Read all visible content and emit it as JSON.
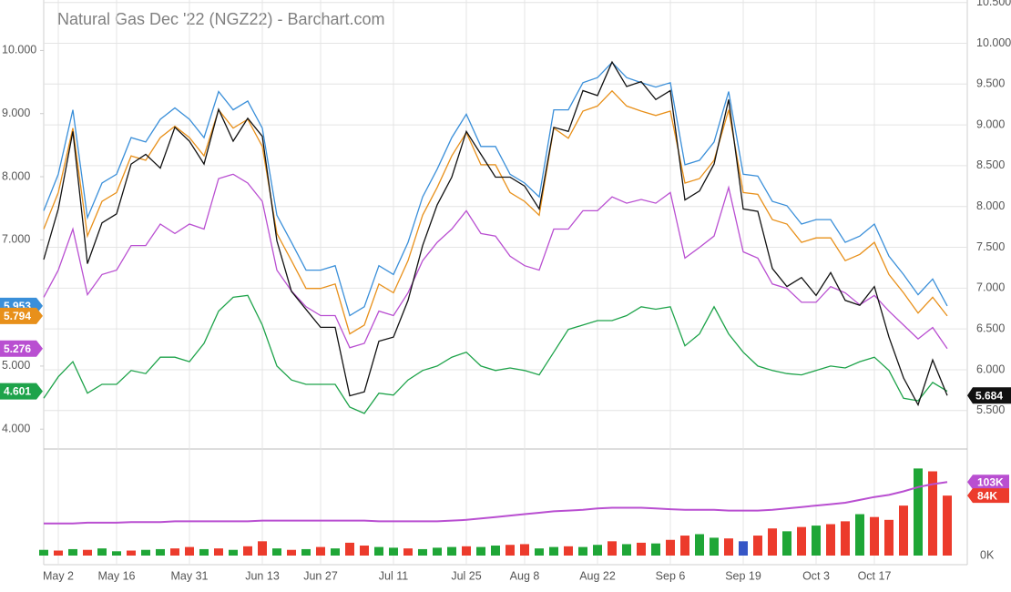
{
  "chart_data": {
    "type": "line",
    "title": "Natural Gas Dec '22 (NGZ22) - Barchart.com",
    "categories": [
      null,
      "May 2",
      null,
      null,
      null,
      "May 16",
      null,
      null,
      null,
      null,
      "May 31",
      null,
      null,
      null,
      null,
      "Jun 13",
      null,
      null,
      null,
      "Jun 27",
      null,
      null,
      null,
      null,
      "Jul 11",
      null,
      null,
      null,
      null,
      "Jul 25",
      null,
      null,
      null,
      "Aug 8",
      null,
      null,
      null,
      null,
      "Aug 22",
      null,
      null,
      null,
      null,
      "Sep 6",
      null,
      null,
      null,
      null,
      "Sep 19",
      null,
      null,
      null,
      null,
      "Oct 3",
      null,
      null,
      null,
      "Oct 17",
      null,
      null,
      null,
      null,
      null
    ],
    "ylim": [
      3.7,
      10.8
    ],
    "yticks": [
      {
        "value": 10,
        "label": "10.000"
      },
      {
        "value": 9,
        "label": "9.000"
      },
      {
        "value": 8,
        "label": "8.000"
      },
      {
        "value": 7,
        "label": "7.000"
      },
      {
        "value": 5,
        "label": "5.000"
      },
      {
        "value": 4,
        "label": "4.000"
      }
    ],
    "y2lim": [
      5.04,
      10.53
    ],
    "y2ticks": [
      {
        "value": 10.5,
        "label": "10.500"
      },
      {
        "value": 10,
        "label": "10.000"
      },
      {
        "value": 9.5,
        "label": "9.500"
      },
      {
        "value": 9,
        "label": "9.000"
      },
      {
        "value": 8.5,
        "label": "8.500"
      },
      {
        "value": 8,
        "label": "8.000"
      },
      {
        "value": 7.5,
        "label": "7.500"
      },
      {
        "value": 7,
        "label": "7.000"
      },
      {
        "value": 6.5,
        "label": "6.500"
      },
      {
        "value": 6,
        "label": "6.000"
      },
      {
        "value": 5.5,
        "label": "5.500"
      }
    ],
    "grid": true,
    "series": [
      {
        "color": "#3a8fd9",
        "values": [
          7.46,
          8.04,
          9.06,
          7.35,
          7.9,
          8.04,
          8.62,
          8.55,
          8.91,
          9.09,
          8.91,
          8.62,
          9.35,
          9.06,
          9.2,
          8.77,
          7.39,
          6.96,
          6.52,
          6.52,
          6.59,
          5.8,
          5.94,
          6.59,
          6.45,
          6.96,
          7.68,
          8.12,
          8.62,
          8.99,
          8.48,
          8.48,
          8.04,
          7.9,
          7.68,
          9.06,
          9.06,
          9.49,
          9.57,
          9.81,
          9.57,
          9.49,
          9.42,
          9.49,
          8.19,
          8.26,
          8.55,
          9.35,
          8.04,
          8.01,
          7.61,
          7.54,
          7.25,
          7.32,
          7.32,
          6.96,
          7.06,
          7.25,
          6.74,
          6.45,
          6.13,
          6.38,
          5.953
        ]
      },
      {
        "color": "#e8901a",
        "values": [
          7.17,
          7.75,
          8.77,
          7.06,
          7.61,
          7.75,
          8.33,
          8.26,
          8.62,
          8.8,
          8.62,
          8.33,
          9.06,
          8.77,
          8.91,
          8.48,
          7.1,
          6.67,
          6.23,
          6.23,
          6.3,
          5.51,
          5.65,
          6.3,
          6.16,
          6.67,
          7.39,
          7.83,
          8.33,
          8.7,
          8.19,
          8.19,
          7.75,
          7.61,
          7.39,
          8.77,
          8.61,
          9.04,
          9.12,
          9.36,
          9.12,
          9.04,
          8.97,
          9.04,
          7.9,
          7.97,
          8.26,
          9.06,
          7.75,
          7.72,
          7.32,
          7.25,
          6.96,
          7.03,
          7.03,
          6.67,
          6.77,
          6.96,
          6.45,
          6.16,
          5.84,
          6.09,
          5.794
        ]
      },
      {
        "color": "#b94fd1",
        "values": [
          6.09,
          6.52,
          7.17,
          6.13,
          6.45,
          6.52,
          6.91,
          6.91,
          7.25,
          7.1,
          7.25,
          7.17,
          7.97,
          8.04,
          7.9,
          7.61,
          6.52,
          6.19,
          5.94,
          5.8,
          5.8,
          5.29,
          5.36,
          5.87,
          5.8,
          6.16,
          6.67,
          6.96,
          7.17,
          7.46,
          7.1,
          7.06,
          6.74,
          6.59,
          6.52,
          7.17,
          7.17,
          7.46,
          7.46,
          7.68,
          7.58,
          7.64,
          7.58,
          7.75,
          6.71,
          6.88,
          7.06,
          7.83,
          6.81,
          6.71,
          6.3,
          6.23,
          6.01,
          6.01,
          6.26,
          6.16,
          5.97,
          6.12,
          5.87,
          5.65,
          5.43,
          5.61,
          5.276
        ]
      },
      {
        "color": "#1ea34a",
        "values": [
          4.49,
          4.83,
          5.07,
          4.57,
          4.71,
          4.71,
          4.93,
          4.88,
          5.14,
          5.14,
          5.07,
          5.36,
          5.87,
          6.09,
          6.12,
          5.65,
          5.0,
          4.78,
          4.71,
          4.71,
          4.71,
          4.35,
          4.25,
          4.57,
          4.54,
          4.78,
          4.93,
          5.0,
          5.14,
          5.22,
          5.0,
          4.93,
          4.97,
          4.93,
          4.86,
          5.22,
          5.58,
          5.65,
          5.72,
          5.72,
          5.8,
          5.94,
          5.9,
          5.94,
          5.32,
          5.51,
          5.94,
          5.51,
          5.22,
          5.0,
          4.93,
          4.88,
          4.86,
          4.93,
          5.0,
          4.97,
          5.07,
          5.14,
          4.93,
          4.49,
          4.45,
          4.74,
          4.601
        ]
      },
      {
        "color": "#111111",
        "axis": "y2",
        "values": [
          7.35,
          7.97,
          8.92,
          7.3,
          7.8,
          7.91,
          8.52,
          8.64,
          8.47,
          8.97,
          8.8,
          8.52,
          9.19,
          8.8,
          9.08,
          8.86,
          7.58,
          6.96,
          6.74,
          6.52,
          6.52,
          5.68,
          5.73,
          6.35,
          6.4,
          6.85,
          7.52,
          8.02,
          8.36,
          8.92,
          8.64,
          8.36,
          8.36,
          8.25,
          7.97,
          8.97,
          8.92,
          9.42,
          9.36,
          9.77,
          9.47,
          9.53,
          9.31,
          9.42,
          8.08,
          8.19,
          8.52,
          9.31,
          7.97,
          7.94,
          7.24,
          7.02,
          7.13,
          6.91,
          7.19,
          6.85,
          6.79,
          7.02,
          6.4,
          5.9,
          5.57,
          6.12,
          5.684
        ]
      }
    ],
    "volume": {
      "type": "bar",
      "ylim": [
        0,
        148
      ],
      "yticks": [
        {
          "value": 0,
          "label": "0K"
        }
      ],
      "values": [
        8,
        7,
        9,
        8,
        10,
        6,
        7,
        8,
        9,
        10,
        12,
        9,
        10,
        8,
        13,
        20,
        10,
        8,
        9,
        12,
        10,
        18,
        14,
        12,
        11,
        10,
        9,
        11,
        12,
        13,
        12,
        14,
        15,
        16,
        10,
        12,
        13,
        12,
        15,
        20,
        16,
        18,
        17,
        22,
        28,
        30,
        25,
        24,
        20,
        28,
        38,
        34,
        40,
        42,
        44,
        48,
        58,
        54,
        50,
        70,
        122,
        118,
        84
      ],
      "value_labels": [
        null,
        null,
        null,
        null,
        null,
        null,
        null,
        null,
        null,
        null,
        null,
        null,
        null,
        null,
        null,
        null,
        null,
        null,
        null,
        null,
        null,
        null,
        null,
        null,
        null,
        null,
        null,
        null,
        null,
        null,
        null,
        null,
        null,
        null,
        null,
        null,
        null,
        null,
        null,
        null,
        null,
        null,
        null,
        null,
        null,
        null,
        null,
        null,
        null,
        null,
        null,
        null,
        null,
        null,
        null,
        null,
        null,
        null,
        null,
        null,
        null,
        null,
        "84K"
      ],
      "label_color": "#ec3b2c",
      "colors": [
        "#1fa637",
        "#ec3b2c",
        "#1fa637",
        "#ec3b2c",
        "#1fa637",
        "#1fa637",
        "#ec3b2c",
        "#1fa637",
        "#1fa637",
        "#ec3b2c",
        "#ec3b2c",
        "#1fa637",
        "#ec3b2c",
        "#1fa637",
        "#ec3b2c",
        "#ec3b2c",
        "#1fa637",
        "#ec3b2c",
        "#1fa637",
        "#ec3b2c",
        "#1fa637",
        "#ec3b2c",
        "#ec3b2c",
        "#1fa637",
        "#1fa637",
        "#ec3b2c",
        "#1fa637",
        "#1fa637",
        "#1fa637",
        "#ec3b2c",
        "#1fa637",
        "#1fa637",
        "#ec3b2c",
        "#ec3b2c",
        "#1fa637",
        "#1fa637",
        "#ec3b2c",
        "#1fa637",
        "#1fa637",
        "#ec3b2c",
        "#1fa637",
        "#ec3b2c",
        "#1fa637",
        "#ec3b2c",
        "#ec3b2c",
        "#1fa637",
        "#1fa637",
        "#ec3b2c",
        "#3656c6",
        "#ec3b2c",
        "#ec3b2c",
        "#1fa637",
        "#ec3b2c",
        "#1fa637",
        "#ec3b2c",
        "#ec3b2c",
        "#1fa637",
        "#ec3b2c",
        "#ec3b2c",
        "#ec3b2c",
        "#1fa637",
        "#ec3b2c",
        "#ec3b2c"
      ],
      "average": {
        "color": "#b94fd1",
        "values": [
          45,
          45,
          45,
          46,
          46,
          46,
          47,
          47,
          47,
          48,
          48,
          48,
          48,
          48,
          48,
          49,
          49,
          49,
          49,
          49,
          49,
          49,
          49,
          48,
          48,
          48,
          48,
          48,
          49,
          50,
          52,
          54,
          56,
          58,
          60,
          62,
          63,
          64,
          66,
          67,
          67,
          67,
          66,
          65,
          64,
          64,
          64,
          63,
          63,
          63,
          64,
          66,
          68,
          70,
          72,
          74,
          78,
          82,
          85,
          90,
          96,
          100,
          103
        ],
        "value_labels": [
          null,
          null,
          null,
          null,
          null,
          null,
          null,
          null,
          null,
          null,
          null,
          null,
          null,
          null,
          null,
          null,
          null,
          null,
          null,
          null,
          null,
          null,
          null,
          null,
          null,
          null,
          null,
          null,
          null,
          null,
          null,
          null,
          null,
          null,
          null,
          null,
          null,
          null,
          null,
          null,
          null,
          null,
          null,
          null,
          null,
          null,
          null,
          null,
          null,
          null,
          null,
          null,
          null,
          null,
          null,
          null,
          null,
          null,
          null,
          null,
          null,
          null,
          "103K"
        ]
      }
    }
  }
}
